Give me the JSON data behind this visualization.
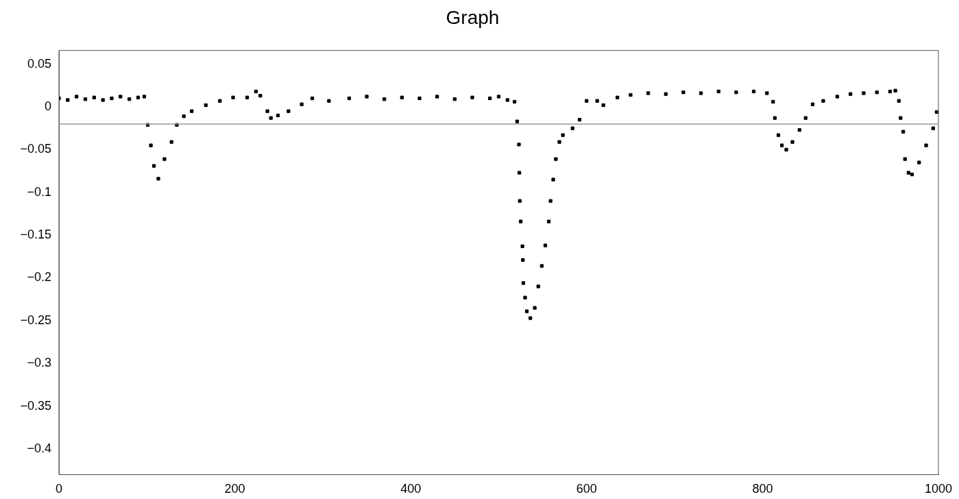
{
  "chart_data": {
    "type": "scatter",
    "title": "Graph",
    "marker": "square",
    "grid": false,
    "legend": false,
    "xlim": [
      0,
      1000
    ],
    "xticks": [
      0,
      200,
      400,
      600,
      800,
      1000
    ],
    "ylim": [
      -0.43,
      0.066
    ],
    "yticks": [
      0.05,
      0,
      -0.05,
      -0.1,
      -0.15,
      -0.2,
      -0.25,
      -0.3,
      -0.35,
      -0.4
    ],
    "ref_lines": [
      {
        "axis": "y",
        "value": -0.02,
        "color": "#999999"
      }
    ],
    "series": [
      {
        "color": "#000000",
        "x": [
          0,
          10,
          20,
          30,
          40,
          50,
          60,
          70,
          80,
          90,
          97,
          101,
          104.5,
          108,
          113,
          120,
          128,
          134,
          142,
          151,
          167,
          183,
          198,
          214,
          224,
          229,
          237,
          241,
          249,
          261,
          276,
          288,
          307,
          330,
          350,
          370,
          390,
          410,
          430,
          450,
          470,
          490,
          500,
          510,
          518,
          521,
          523,
          523.5,
          524,
          525,
          527,
          527.5,
          528,
          530,
          532,
          536,
          541,
          545,
          549,
          553,
          557,
          559,
          562,
          565,
          569,
          573,
          584,
          592,
          600,
          612,
          619,
          635,
          650,
          670,
          690,
          710,
          730,
          750,
          770,
          790,
          805,
          812,
          814,
          818,
          822,
          827,
          834,
          842,
          849,
          857,
          869,
          885,
          900,
          915,
          930,
          945,
          951,
          955,
          957,
          960,
          962,
          966,
          970,
          978,
          986,
          994,
          998
        ],
        "values": [
          0.01,
          0.008,
          0.012,
          0.009,
          0.011,
          0.008,
          0.01,
          0.012,
          0.009,
          0.011,
          0.012,
          -0.021,
          -0.045,
          -0.069,
          -0.084,
          -0.061,
          -0.041,
          -0.021,
          -0.011,
          -0.005,
          0.002,
          0.007,
          0.011,
          0.011,
          0.018,
          0.013,
          -0.005,
          -0.013,
          -0.01,
          -0.005,
          0.003,
          0.01,
          0.007,
          0.01,
          0.012,
          0.009,
          0.011,
          0.01,
          0.012,
          0.009,
          0.011,
          0.01,
          0.012,
          0.008,
          0.006,
          -0.017,
          -0.044,
          -0.077,
          -0.11,
          -0.134,
          -0.163,
          -0.179,
          -0.206,
          -0.223,
          -0.239,
          -0.247,
          -0.235,
          -0.21,
          -0.186,
          -0.162,
          -0.134,
          -0.11,
          -0.085,
          -0.061,
          -0.041,
          -0.033,
          -0.025,
          -0.015,
          0.007,
          0.007,
          0.002,
          0.011,
          0.014,
          0.016,
          0.015,
          0.017,
          0.016,
          0.018,
          0.017,
          0.018,
          0.016,
          0.006,
          -0.013,
          -0.033,
          -0.045,
          -0.05,
          -0.041,
          -0.027,
          -0.013,
          0.003,
          0.007,
          0.012,
          0.015,
          0.016,
          0.017,
          0.018,
          0.019,
          0.007,
          -0.013,
          -0.029,
          -0.061,
          -0.077,
          -0.079,
          -0.065,
          -0.045,
          -0.025,
          -0.006
        ]
      }
    ]
  }
}
